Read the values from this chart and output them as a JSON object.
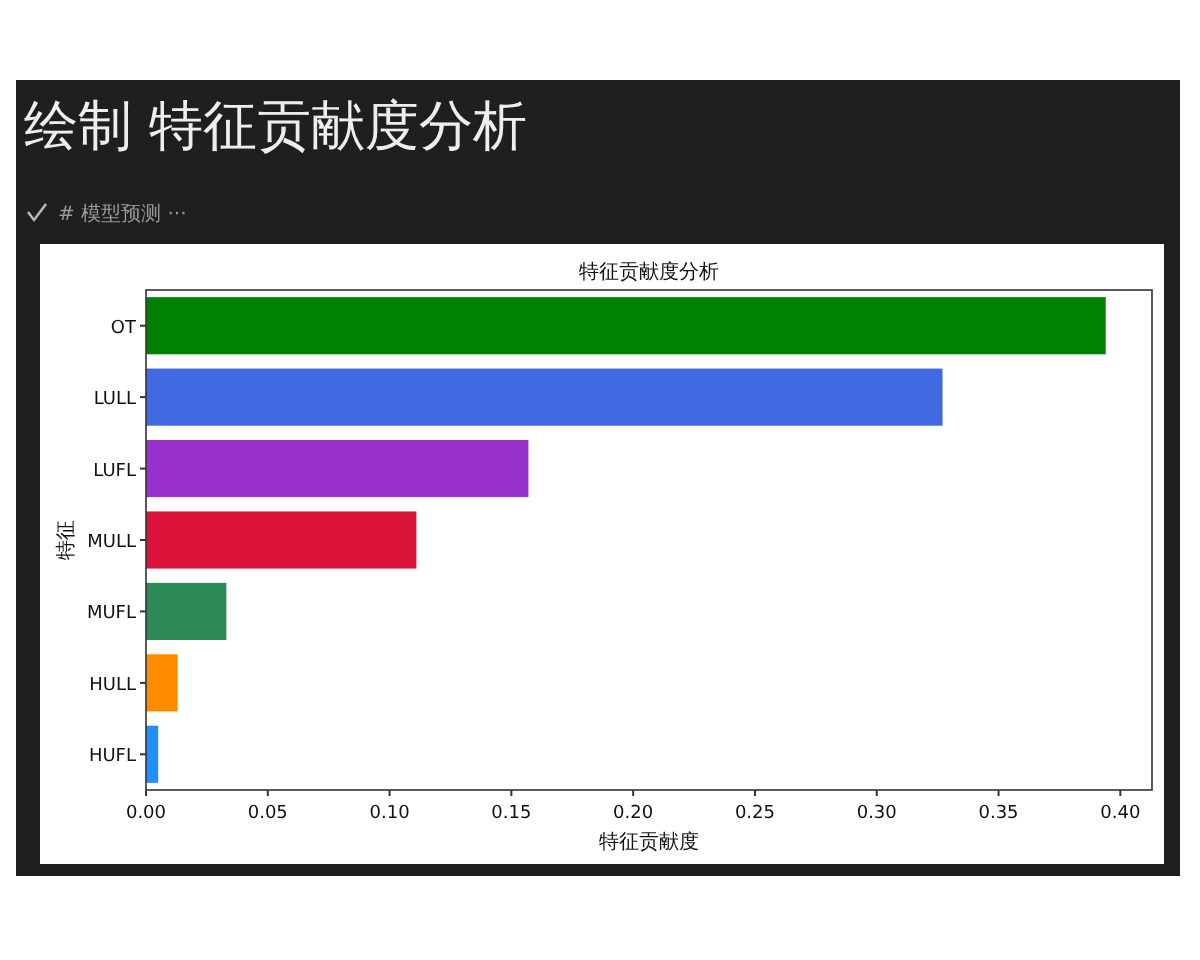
{
  "chart_data": {
    "type": "bar",
    "orientation": "horizontal",
    "title": "特征贡献度分析",
    "xlabel": "特征贡献度",
    "ylabel": "特征",
    "annotations": [
      "绘制 特征贡献度分析",
      "# 模型预测 ···"
    ],
    "categories": [
      "OT",
      "LULL",
      "LUFL",
      "MULL",
      "MUFL",
      "HULL",
      "HUFL"
    ],
    "values": [
      0.394,
      0.327,
      0.157,
      0.111,
      0.033,
      0.013,
      0.005
    ],
    "colors": [
      "#008000",
      "#4169e1",
      "#9932cc",
      "#dc143c",
      "#2e8b57",
      "#ff8c00",
      "#1e90ff"
    ],
    "xlim": [
      0,
      0.413
    ],
    "xticks": [
      {
        "value": 0,
        "label": "0.00"
      },
      {
        "value": 0.05,
        "label": "0.05"
      },
      {
        "value": 0.1,
        "label": "0.10"
      },
      {
        "value": 0.15,
        "label": "0.15"
      },
      {
        "value": 0.2,
        "label": "0.20"
      },
      {
        "value": 0.25,
        "label": "0.25"
      },
      {
        "value": 0.3,
        "label": "0.30"
      },
      {
        "value": 0.35,
        "label": "0.35"
      },
      {
        "value": 0.4,
        "label": "0.40"
      }
    ],
    "grid": false
  }
}
